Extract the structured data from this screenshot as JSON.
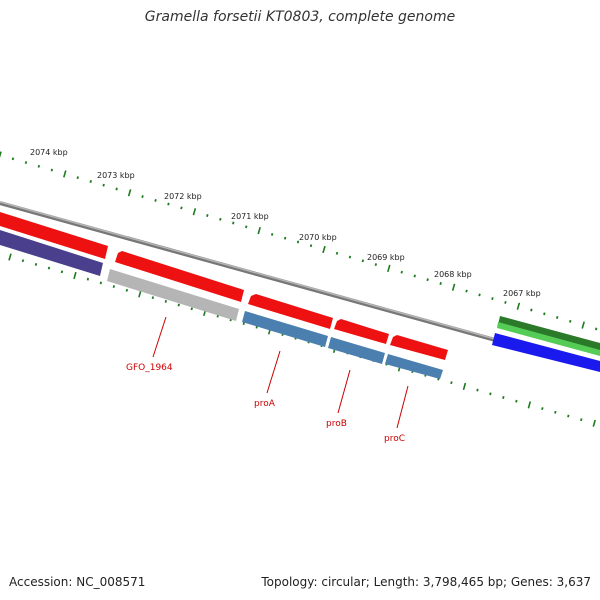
{
  "title": "Gramella forsetii KT0803, complete genome",
  "footer": {
    "accession": "Accession: NC_008571",
    "summary": "Topology: circular; Length: 3,798,465 bp; Genes: 3,637"
  },
  "kbp_labels": [
    "2074 kbp",
    "2073 kbp",
    "2072 kbp",
    "2071 kbp",
    "2070 kbp",
    "2069 kbp",
    "2068 kbp",
    "2067 kbp"
  ],
  "gene_labels": [
    "GFO_1964",
    "proA",
    "proB",
    "proC"
  ],
  "colors": {
    "label_red": "#cc0000",
    "tick_green": "#1f7a1f",
    "backbone": "#8c8c8c",
    "feature_red": "#ee1111",
    "feature_purple": "#4a3f8c",
    "feature_gray": "#b5b5b5",
    "feature_steel": "#4a7fb0",
    "feature_green": "#33aa33",
    "feature_blue": "#1a1aee"
  }
}
